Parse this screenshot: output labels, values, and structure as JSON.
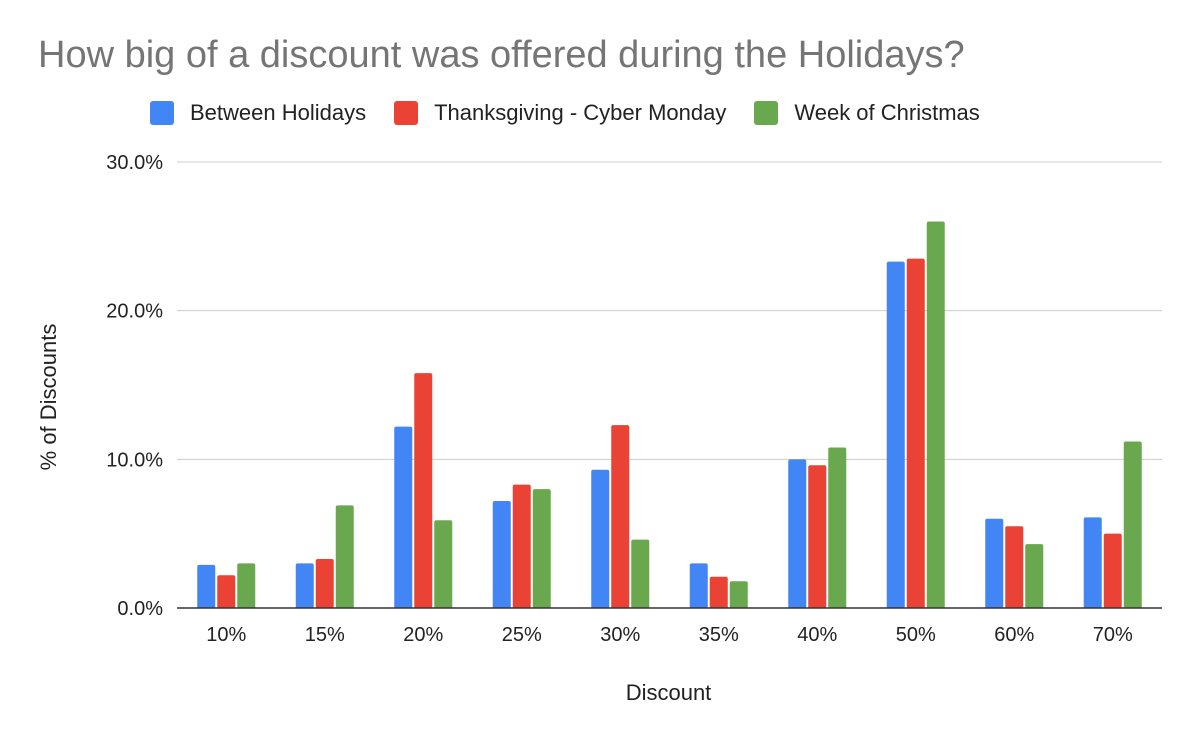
{
  "chart_data": {
    "type": "bar",
    "title": "How big of a discount was offered during the Holidays?",
    "xlabel": "Discount",
    "ylabel": "% of Discounts",
    "categories": [
      "10%",
      "15%",
      "20%",
      "25%",
      "30%",
      "35%",
      "40%",
      "50%",
      "60%",
      "70%"
    ],
    "ylim": [
      0,
      30
    ],
    "yticks": [
      "0.0%",
      "10.0%",
      "20.0%",
      "30.0%"
    ],
    "ytick_values": [
      0,
      10,
      20,
      30
    ],
    "grid": true,
    "legend_position": "top",
    "series": [
      {
        "name": "Between Holidays",
        "color": "#4285f4",
        "values": [
          2.9,
          3.0,
          12.2,
          7.2,
          9.3,
          3.0,
          10.0,
          23.3,
          6.0,
          6.1
        ]
      },
      {
        "name": "Thanksgiving - Cyber Monday",
        "color": "#ea4335",
        "values": [
          2.2,
          3.3,
          15.8,
          8.3,
          12.3,
          2.1,
          9.6,
          23.5,
          5.5,
          5.0
        ]
      },
      {
        "name": "Week of Christmas",
        "color": "#6aa84f",
        "values": [
          3.0,
          6.9,
          5.9,
          8.0,
          4.6,
          1.8,
          10.8,
          26.0,
          4.3,
          11.2
        ]
      }
    ]
  }
}
